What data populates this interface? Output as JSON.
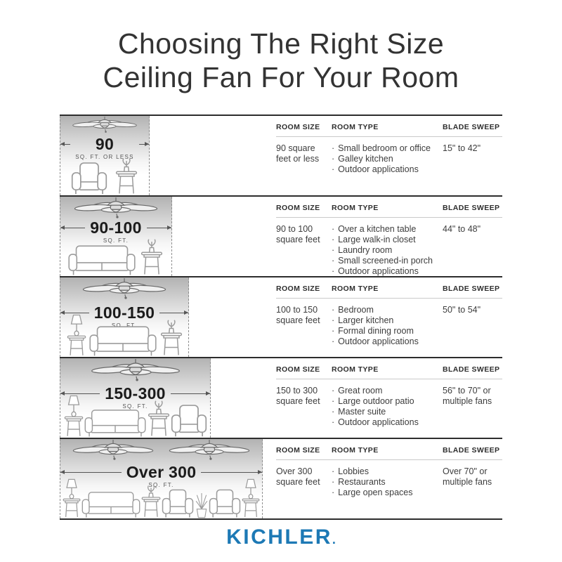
{
  "title": {
    "line1": "Choosing The Right Size",
    "line2": "Ceiling Fan For Your Room"
  },
  "table": {
    "headers": [
      "ROOM SIZE",
      "ROOM TYPE",
      "BLADE SWEEP"
    ],
    "bullet": "·"
  },
  "rows": [
    {
      "size_label": "90",
      "size_caption": "SQ. FT. OR LESS",
      "room_size": "90 square feet or less",
      "room_types": [
        "Small bedroom or office",
        "Galley kitchen",
        "Outdoor applications"
      ],
      "blade_sweep": "15\" to 42\"",
      "fans": 1,
      "furniture": [
        "armchair",
        "plant-table"
      ]
    },
    {
      "size_label": "90-100",
      "size_caption": "SQ. FT.",
      "room_size": "90 to 100 square feet",
      "room_types": [
        "Over a kitchen table",
        "Large walk-in closet",
        "Laundry room",
        "Small screened-in porch",
        "Outdoor applications"
      ],
      "blade_sweep": "44\" to 48\"",
      "fans": 1,
      "furniture": [
        "sofa",
        "plant-table"
      ]
    },
    {
      "size_label": "100-150",
      "size_caption": "SQ. FT.",
      "room_size": "100 to 150 square feet",
      "room_types": [
        "Bedroom",
        "Larger kitchen",
        "Formal dining room",
        "Outdoor applications"
      ],
      "blade_sweep": "50\" to 54\"",
      "fans": 1,
      "furniture": [
        "lamp-table",
        "sofa",
        "plant-table"
      ]
    },
    {
      "size_label": "150-300",
      "size_caption": "SQ. FT.",
      "room_size": "150 to 300 square feet",
      "room_types": [
        "Great room",
        "Large outdoor patio",
        "Master suite",
        "Outdoor applications"
      ],
      "blade_sweep": "56\" to 70\" or multiple fans",
      "fans": 1,
      "furniture": [
        "lamp-table",
        "sofa",
        "plant-table",
        "armchair"
      ]
    },
    {
      "size_label": "Over 300",
      "size_caption": "SQ. FT.",
      "room_size": "Over 300 square feet",
      "room_types": [
        "Lobbies",
        "Restaurants",
        "Large open spaces"
      ],
      "blade_sweep": "Over 70\" or multiple fans",
      "fans": 2,
      "furniture": [
        "lamp-table",
        "sofa",
        "plant-table",
        "armchair",
        "floor-plant",
        "armchair",
        "lamp-table"
      ]
    }
  ],
  "footer": {
    "logo": "KICHLER",
    "logo_mark": "."
  },
  "colors": {
    "logo_blue": "#1d79b5",
    "row_line": "#2d2d2d"
  }
}
